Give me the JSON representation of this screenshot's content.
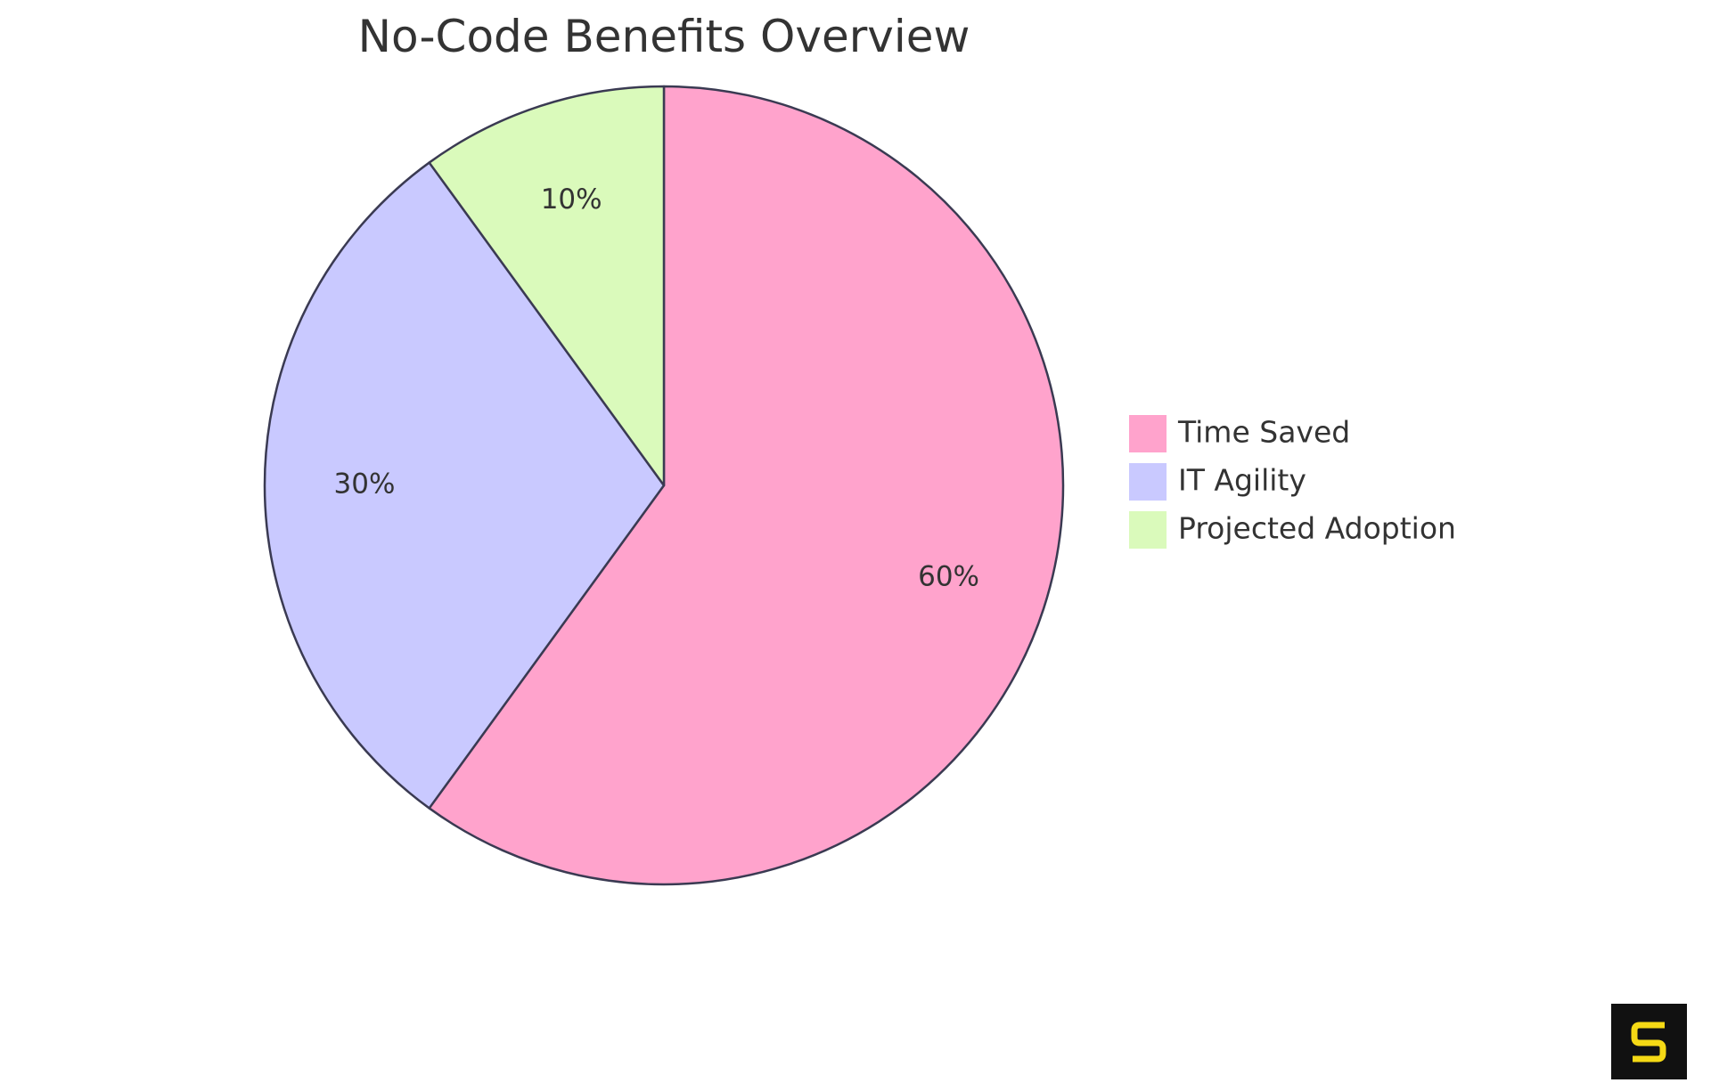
{
  "chart_data": {
    "type": "pie",
    "title": "No-Code Benefits Overview",
    "slices": [
      {
        "label": "Time Saved",
        "value": 60,
        "display": "60%",
        "color": "#ffa3cc"
      },
      {
        "label": "IT Agility",
        "value": 30,
        "display": "30%",
        "color": "#c9c9ff"
      },
      {
        "label": "Projected Adoption",
        "value": 10,
        "display": "10%",
        "color": "#dafabb"
      }
    ],
    "legend_position": "right",
    "stroke_color": "#3a3a52"
  },
  "logo": {
    "icon": "s-logo-icon",
    "background": "#111111",
    "accent": "#f5d915"
  }
}
